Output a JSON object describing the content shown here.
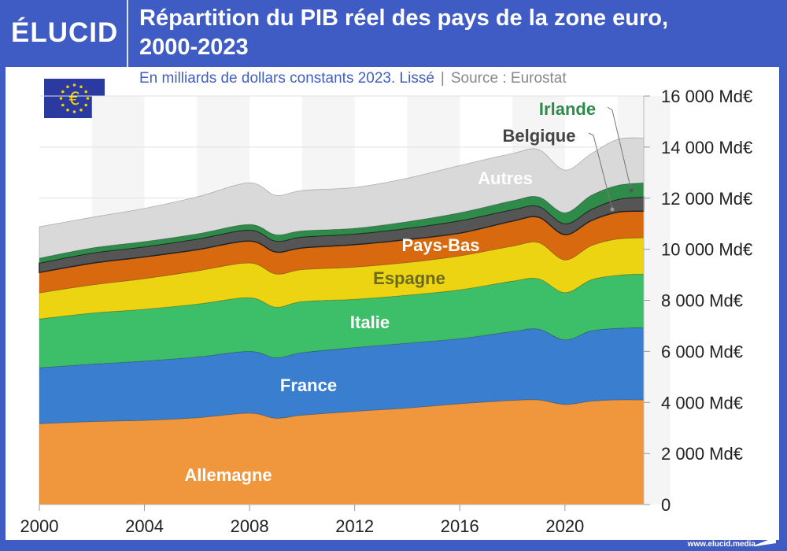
{
  "brand": "ÉLUCID",
  "title_line1": "Répartition du PIB réel des pays de la zone euro,",
  "title_line2": "2000-2023",
  "subtitle": "En milliards de dollars constants 2023. Lissé",
  "source": "Source : Eurostat",
  "footer": "www.elucid.media",
  "chart_data": {
    "type": "area",
    "stacked": true,
    "title": "Répartition du PIB réel des pays de la zone euro, 2000-2023",
    "xlabel": "",
    "ylabel": "",
    "x": [
      2000,
      2002,
      2004,
      2006,
      2008,
      2009,
      2010,
      2012,
      2014,
      2016,
      2018,
      2019,
      2020,
      2021,
      2022,
      2023
    ],
    "xlim": [
      2000,
      2023
    ],
    "ylim": [
      0,
      16000
    ],
    "x_ticks": [
      "2000",
      "2004",
      "2008",
      "2012",
      "2016",
      "2020"
    ],
    "y_ticks": [
      "0",
      "2 000 Md€",
      "4 000 Md€",
      "6 000 Md€",
      "8 000 Md€",
      "10 000 Md€",
      "12 000 Md€",
      "14 000 Md€",
      "16 000 Md€"
    ],
    "y_tick_values": [
      0,
      2000,
      4000,
      6000,
      8000,
      10000,
      12000,
      14000,
      16000
    ],
    "grid": true,
    "legend": "inline labels",
    "series": [
      {
        "name": "Allemagne",
        "color": "#f0963c",
        "label_color": "#ffffff",
        "values": [
          3170,
          3250,
          3300,
          3400,
          3580,
          3380,
          3500,
          3650,
          3780,
          3950,
          4080,
          4100,
          3920,
          4050,
          4100,
          4100
        ]
      },
      {
        "name": "France",
        "color": "#3a7fcf",
        "label_color": "#ffffff",
        "values": [
          2190,
          2250,
          2320,
          2380,
          2420,
          2370,
          2450,
          2500,
          2540,
          2550,
          2700,
          2770,
          2530,
          2750,
          2800,
          2830
        ]
      },
      {
        "name": "Italie",
        "color": "#3dbf6a",
        "label_color": "#ffffff",
        "values": [
          1910,
          2000,
          2030,
          2070,
          2100,
          1980,
          2000,
          1890,
          1880,
          1910,
          1970,
          1970,
          1850,
          2000,
          2080,
          2100
        ]
      },
      {
        "name": "Espagne",
        "color": "#ecd412",
        "label_color": "#6b6a1a",
        "values": [
          1020,
          1100,
          1200,
          1300,
          1360,
          1300,
          1250,
          1260,
          1280,
          1330,
          1370,
          1420,
          1280,
          1340,
          1420,
          1420
        ]
      },
      {
        "name": "Pays-Bas",
        "color": "#d8690f",
        "label_color": "#ffffff",
        "values": [
          800,
          850,
          850,
          830,
          860,
          860,
          850,
          880,
          900,
          890,
          980,
          990,
          990,
          980,
          1050,
          1040
        ]
      },
      {
        "name": "Belgique",
        "color": "#555555",
        "label_color": "#444444",
        "values": [
          370,
          400,
          400,
          420,
          430,
          430,
          430,
          420,
          440,
          490,
          450,
          430,
          430,
          440,
          500,
          560
        ]
      },
      {
        "name": "Irlande",
        "color": "#2e8b4a",
        "label_color": "#2e8b4a",
        "values": [
          190,
          200,
          200,
          200,
          220,
          250,
          240,
          220,
          260,
          310,
          350,
          370,
          430,
          550,
          550,
          550
        ]
      },
      {
        "name": "Autres",
        "color": "#d9d9d9",
        "label_color": "#ffffff",
        "values": [
          1230,
          1200,
          1300,
          1450,
          1630,
          1540,
          1580,
          1600,
          1700,
          1850,
          1850,
          1850,
          1670,
          1630,
          1800,
          1760
        ]
      }
    ]
  }
}
